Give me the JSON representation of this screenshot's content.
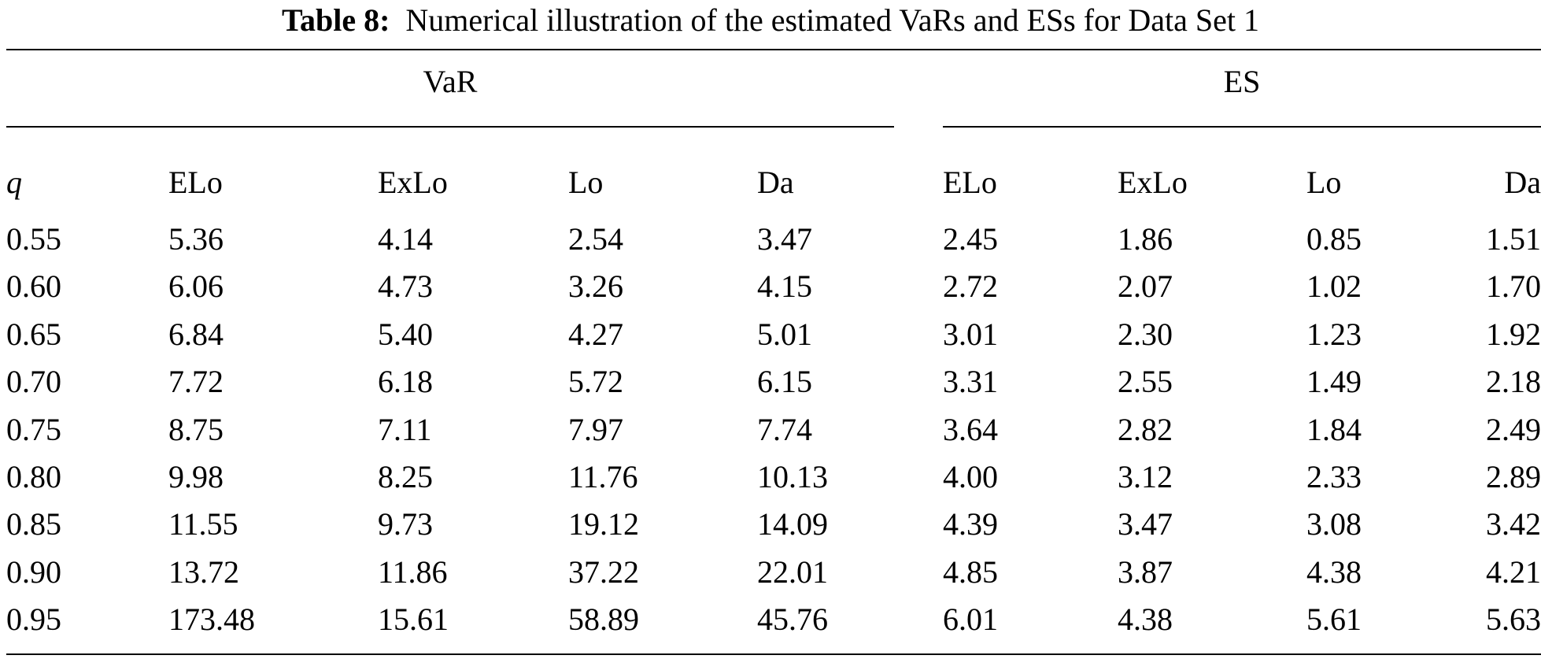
{
  "caption": {
    "label": "Table 8:",
    "text": "Numerical illustration of the estimated VaRs and ESs for Data Set 1"
  },
  "groups": {
    "var": "VaR",
    "es": "ES"
  },
  "columns": [
    "q",
    "ELo",
    "ExLo",
    "Lo",
    "Da",
    "ELo",
    "ExLo",
    "Lo",
    "Da"
  ],
  "rows": [
    [
      "0.55",
      "5.36",
      "4.14",
      "2.54",
      "3.47",
      "2.45",
      "1.86",
      "0.85",
      "1.51"
    ],
    [
      "0.60",
      "6.06",
      "4.73",
      "3.26",
      "4.15",
      "2.72",
      "2.07",
      "1.02",
      "1.70"
    ],
    [
      "0.65",
      "6.84",
      "5.40",
      "4.27",
      "5.01",
      "3.01",
      "2.30",
      "1.23",
      "1.92"
    ],
    [
      "0.70",
      "7.72",
      "6.18",
      "5.72",
      "6.15",
      "3.31",
      "2.55",
      "1.49",
      "2.18"
    ],
    [
      "0.75",
      "8.75",
      "7.11",
      "7.97",
      "7.74",
      "3.64",
      "2.82",
      "1.84",
      "2.49"
    ],
    [
      "0.80",
      "9.98",
      "8.25",
      "11.76",
      "10.13",
      "4.00",
      "3.12",
      "2.33",
      "2.89"
    ],
    [
      "0.85",
      "11.55",
      "9.73",
      "19.12",
      "14.09",
      "4.39",
      "3.47",
      "3.08",
      "3.42"
    ],
    [
      "0.90",
      "13.72",
      "11.86",
      "37.22",
      "22.01",
      "4.85",
      "3.87",
      "4.38",
      "4.21"
    ],
    [
      "0.95",
      "173.48",
      "15.61",
      "58.89",
      "45.76",
      "6.01",
      "4.38",
      "5.61",
      "5.63"
    ]
  ]
}
